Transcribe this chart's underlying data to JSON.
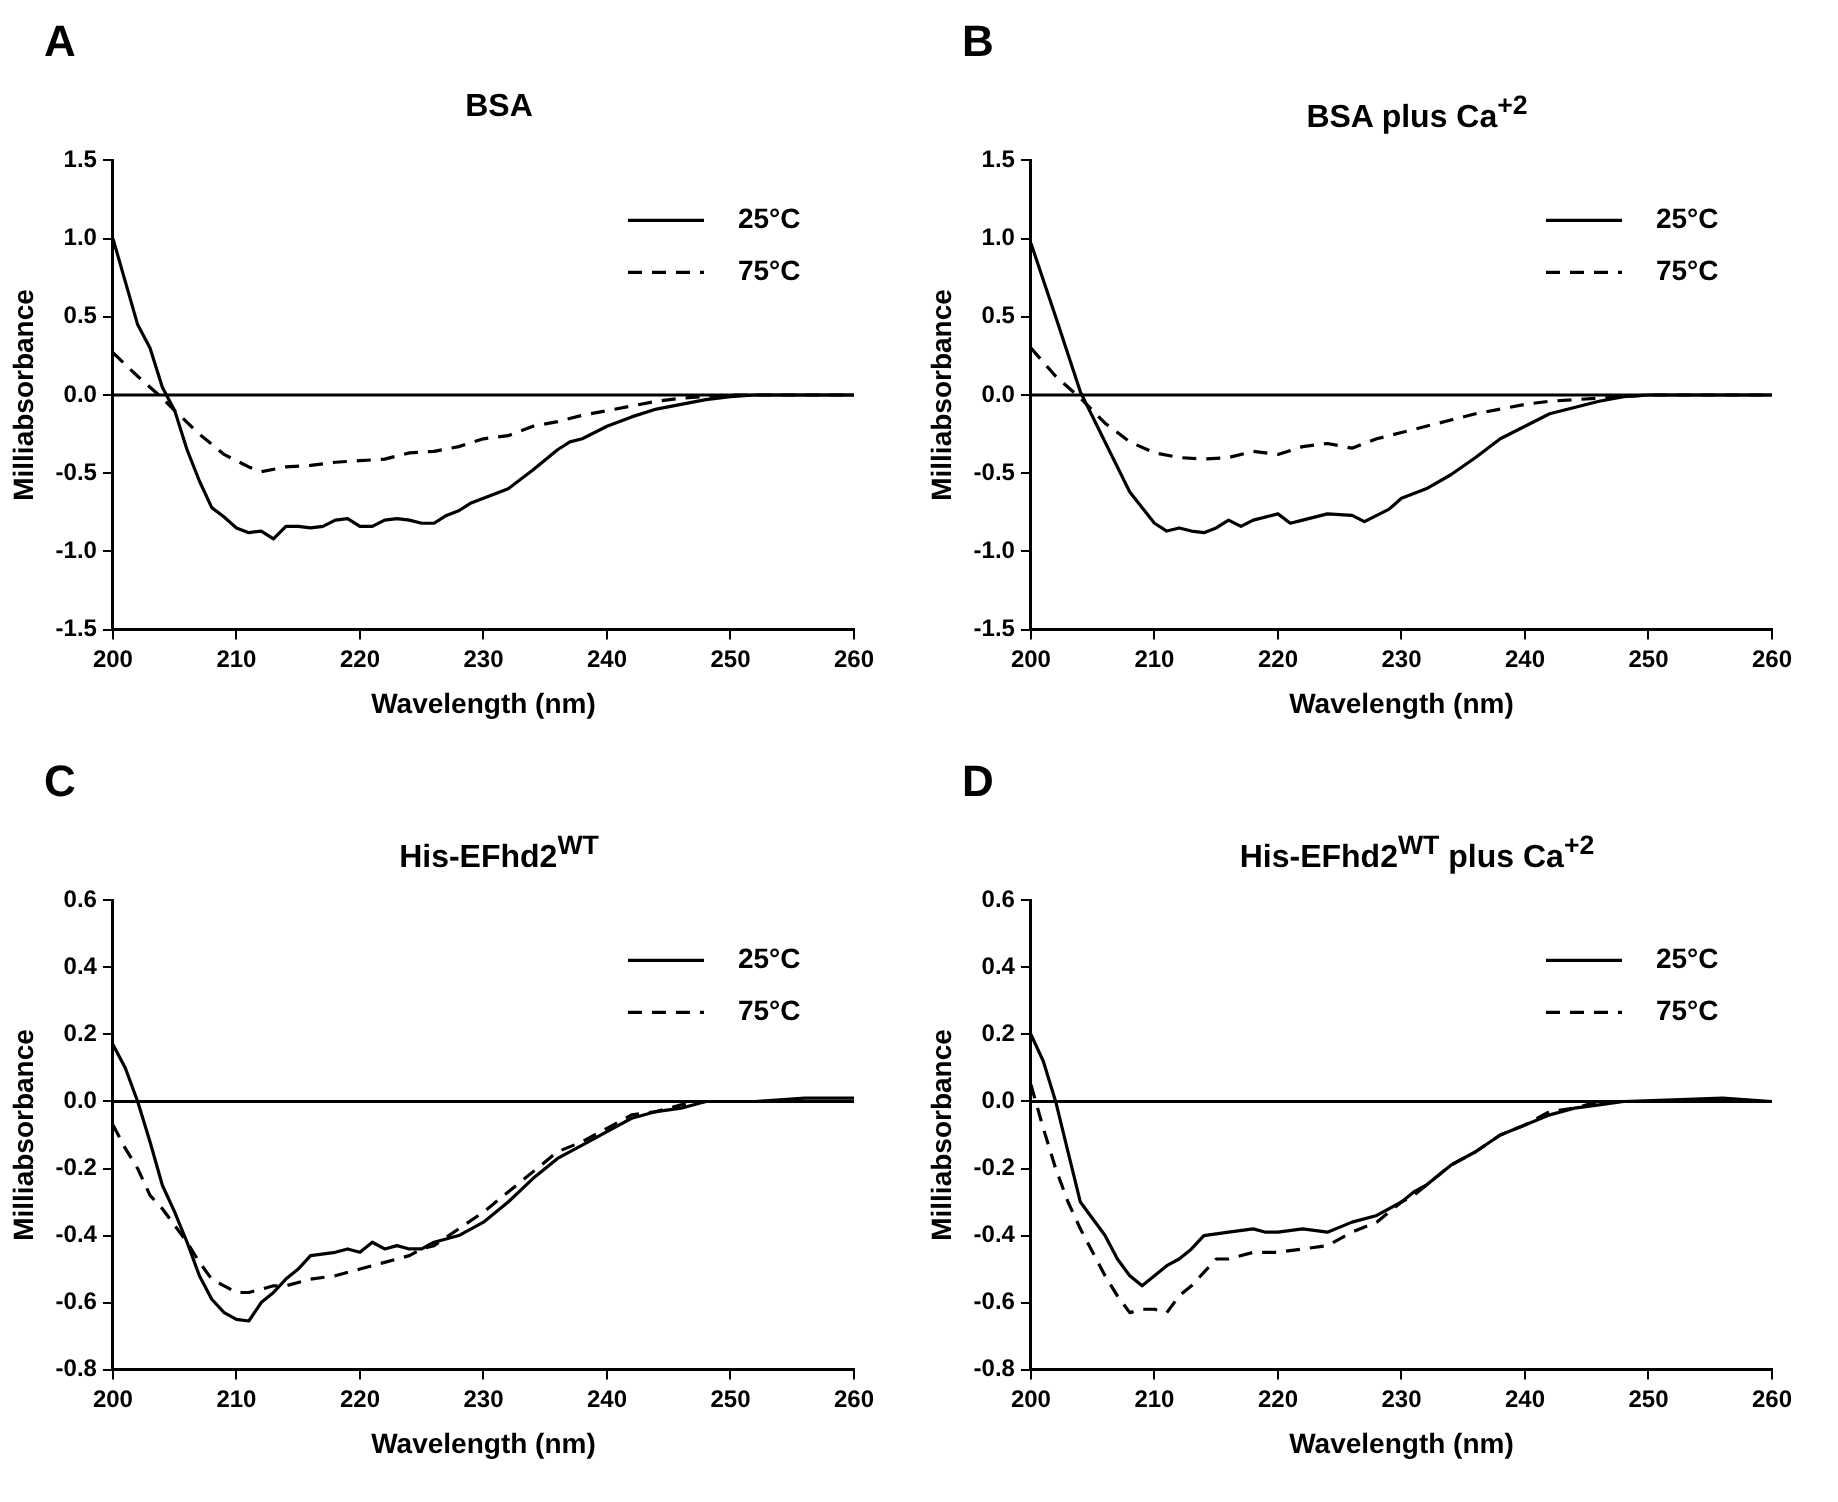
{
  "chart_data": [
    {
      "type": "line",
      "title": "BSA",
      "xlabel": "Wavelength (nm)",
      "ylabel": "Milliabsorbance",
      "annotations": [
        "A"
      ],
      "xlim": [
        200,
        260
      ],
      "xticks": [
        200,
        210,
        220,
        230,
        240,
        250,
        260
      ],
      "ylim": [
        -1.5,
        1.5
      ],
      "yticks": [
        {
          "value": -1.5,
          "label": "-1.5"
        },
        {
          "value": -1,
          "label": "-1.0"
        },
        {
          "value": -0.5,
          "label": "-0.5"
        },
        {
          "value": 0,
          "label": "0.0"
        },
        {
          "value": 0.5,
          "label": "0.5"
        },
        {
          "value": 1,
          "label": "1.0"
        },
        {
          "value": 1.5,
          "label": "1.5"
        }
      ],
      "grid": false,
      "legend": "top right",
      "marker": "none",
      "ref_lines": [
        {
          "axis": "y",
          "value": 0,
          "color": "#000000"
        }
      ],
      "series": [
        {
          "name": "25°C",
          "color": "#000000",
          "line_style": "solid",
          "x": [
            200,
            202,
            203,
            204,
            205,
            206,
            207,
            208,
            209,
            210,
            211,
            212,
            213,
            214,
            215,
            216,
            217,
            218,
            219,
            220,
            221,
            222,
            223,
            224,
            225,
            226,
            227,
            228,
            229,
            230,
            232,
            234,
            236,
            237,
            238,
            240,
            242,
            244,
            246,
            248,
            250,
            252,
            256,
            260
          ],
          "values": [
            1.0,
            0.45,
            0.3,
            0.05,
            -0.1,
            -0.35,
            -0.55,
            -0.72,
            -0.78,
            -0.85,
            -0.88,
            -0.87,
            -0.92,
            -0.84,
            -0.84,
            -0.85,
            -0.84,
            -0.8,
            -0.79,
            -0.84,
            -0.84,
            -0.8,
            -0.79,
            -0.8,
            -0.82,
            -0.82,
            -0.77,
            -0.74,
            -0.69,
            -0.66,
            -0.6,
            -0.48,
            -0.35,
            -0.3,
            -0.28,
            -0.2,
            -0.14,
            -0.09,
            -0.06,
            -0.03,
            -0.01,
            0,
            0,
            0
          ]
        },
        {
          "name": "75°C",
          "color": "#000000",
          "line_style": "dashed",
          "x": [
            200,
            202,
            204,
            205,
            207,
            209,
            211,
            212,
            214,
            216,
            218,
            220,
            222,
            224,
            226,
            228,
            230,
            232,
            234,
            236,
            238,
            240,
            242,
            244,
            246,
            248,
            250,
            260
          ],
          "values": [
            0.27,
            0.12,
            -0.02,
            -0.1,
            -0.25,
            -0.38,
            -0.46,
            -0.49,
            -0.46,
            -0.45,
            -0.43,
            -0.42,
            -0.41,
            -0.37,
            -0.36,
            -0.33,
            -0.28,
            -0.26,
            -0.2,
            -0.17,
            -0.13,
            -0.1,
            -0.07,
            -0.04,
            -0.02,
            -0.01,
            0,
            0
          ]
        }
      ]
    },
    {
      "type": "line",
      "title": "BSA plus Ca$^{+2}$",
      "xlabel": "Wavelength (nm)",
      "ylabel": "Milliabsorbance",
      "annotations": [
        "B"
      ],
      "xlim": [
        200,
        260
      ],
      "xticks": [
        200,
        210,
        220,
        230,
        240,
        250,
        260
      ],
      "ylim": [
        -1.5,
        1.5
      ],
      "yticks": [
        {
          "value": -1.5,
          "label": "-1.5"
        },
        {
          "value": -1,
          "label": "-1.0"
        },
        {
          "value": -0.5,
          "label": "-0.5"
        },
        {
          "value": 0,
          "label": "0.0"
        },
        {
          "value": 0.5,
          "label": "0.5"
        },
        {
          "value": 1,
          "label": "1.0"
        },
        {
          "value": 1.5,
          "label": "1.5"
        }
      ],
      "grid": false,
      "legend": "top right",
      "marker": "none",
      "ref_lines": [
        {
          "axis": "y",
          "value": 0,
          "color": "#000000"
        }
      ],
      "series": [
        {
          "name": "25°C",
          "color": "#000000",
          "line_style": "solid",
          "x": [
            200,
            202,
            204,
            206,
            208,
            210,
            211,
            212,
            213,
            214,
            215,
            216,
            217,
            218,
            220,
            221,
            222,
            224,
            226,
            227,
            228,
            229,
            230,
            232,
            234,
            236,
            238,
            240,
            242,
            244,
            246,
            248,
            250,
            260
          ],
          "values": [
            0.97,
            0.5,
            0.02,
            -0.3,
            -0.62,
            -0.82,
            -0.87,
            -0.85,
            -0.87,
            -0.88,
            -0.85,
            -0.8,
            -0.84,
            -0.8,
            -0.76,
            -0.82,
            -0.8,
            -0.76,
            -0.77,
            -0.81,
            -0.77,
            -0.73,
            -0.66,
            -0.6,
            -0.51,
            -0.4,
            -0.28,
            -0.2,
            -0.12,
            -0.08,
            -0.04,
            -0.01,
            0,
            0
          ]
        },
        {
          "name": "75°C",
          "color": "#000000",
          "line_style": "dashed",
          "x": [
            200,
            202,
            204,
            206,
            208,
            210,
            212,
            214,
            216,
            218,
            220,
            222,
            224,
            226,
            228,
            230,
            232,
            234,
            236,
            238,
            240,
            242,
            244,
            246,
            248,
            250,
            260
          ],
          "values": [
            0.3,
            0.12,
            -0.02,
            -0.18,
            -0.3,
            -0.37,
            -0.4,
            -0.41,
            -0.4,
            -0.36,
            -0.38,
            -0.33,
            -0.31,
            -0.34,
            -0.28,
            -0.24,
            -0.2,
            -0.16,
            -0.12,
            -0.09,
            -0.06,
            -0.04,
            -0.03,
            -0.02,
            -0.01,
            0,
            0
          ]
        }
      ]
    },
    {
      "type": "line",
      "title": "His-EFhd2$^{WT}$",
      "xlabel": "Wavelength (nm)",
      "ylabel": "Milliabsorbance",
      "annotations": [
        "C"
      ],
      "xlim": [
        200,
        260
      ],
      "xticks": [
        200,
        210,
        220,
        230,
        240,
        250,
        260
      ],
      "ylim": [
        -0.8,
        0.6
      ],
      "yticks": [
        {
          "value": -0.8,
          "label": "-0.8"
        },
        {
          "value": -0.6,
          "label": "-0.6"
        },
        {
          "value": -0.4,
          "label": "-0.4"
        },
        {
          "value": -0.2,
          "label": "-0.2"
        },
        {
          "value": 0,
          "label": "0.0"
        },
        {
          "value": 0.2,
          "label": "0.2"
        },
        {
          "value": 0.4,
          "label": "0.4"
        },
        {
          "value": 0.6,
          "label": "0.6"
        }
      ],
      "grid": false,
      "legend": "top right",
      "marker": "none",
      "ref_lines": [
        {
          "axis": "y",
          "value": 0,
          "color": "#000000"
        }
      ],
      "series": [
        {
          "name": "25°C",
          "color": "#000000",
          "line_style": "solid",
          "x": [
            200,
            201,
            202,
            203,
            204,
            205,
            206,
            207,
            208,
            209,
            210,
            211,
            212,
            213,
            214,
            215,
            216,
            218,
            219,
            220,
            221,
            222,
            223,
            224,
            225,
            226,
            228,
            230,
            232,
            234,
            236,
            238,
            240,
            242,
            244,
            246,
            248,
            252,
            256,
            260
          ],
          "values": [
            0.17,
            0.1,
            0.0,
            -0.12,
            -0.25,
            -0.33,
            -0.42,
            -0.52,
            -0.59,
            -0.63,
            -0.65,
            -0.655,
            -0.6,
            -0.57,
            -0.53,
            -0.5,
            -0.46,
            -0.45,
            -0.44,
            -0.45,
            -0.42,
            -0.44,
            -0.43,
            -0.44,
            -0.44,
            -0.42,
            -0.4,
            -0.36,
            -0.3,
            -0.23,
            -0.17,
            -0.13,
            -0.09,
            -0.05,
            -0.03,
            -0.02,
            0,
            0,
            0.01,
            0.01
          ]
        },
        {
          "name": "75°C",
          "color": "#000000",
          "line_style": "dashed",
          "x": [
            200,
            201,
            202,
            203,
            204,
            205,
            206,
            207,
            208,
            209,
            210,
            211,
            212,
            213,
            214,
            216,
            218,
            220,
            222,
            224,
            225,
            226,
            228,
            230,
            232,
            234,
            236,
            238,
            240,
            242,
            244,
            246,
            248,
            260
          ],
          "values": [
            -0.07,
            -0.14,
            -0.2,
            -0.28,
            -0.32,
            -0.37,
            -0.42,
            -0.48,
            -0.53,
            -0.55,
            -0.57,
            -0.57,
            -0.56,
            -0.55,
            -0.55,
            -0.53,
            -0.52,
            -0.5,
            -0.48,
            -0.46,
            -0.44,
            -0.43,
            -0.38,
            -0.33,
            -0.27,
            -0.21,
            -0.15,
            -0.12,
            -0.08,
            -0.04,
            -0.03,
            -0.01,
            0,
            0
          ]
        }
      ]
    },
    {
      "type": "line",
      "title": "His-EFhd2$^{WT}$ plus Ca$^{+2}$",
      "xlabel": "Wavelength (nm)",
      "ylabel": "Milliabsorbance",
      "annotations": [
        "D"
      ],
      "xlim": [
        200,
        260
      ],
      "xticks": [
        200,
        210,
        220,
        230,
        240,
        250,
        260
      ],
      "ylim": [
        -0.8,
        0.6
      ],
      "yticks": [
        {
          "value": -0.8,
          "label": "-0.8"
        },
        {
          "value": -0.6,
          "label": "-0.6"
        },
        {
          "value": -0.4,
          "label": "-0.4"
        },
        {
          "value": -0.2,
          "label": "-0.2"
        },
        {
          "value": 0,
          "label": "0.0"
        },
        {
          "value": 0.2,
          "label": "0.2"
        },
        {
          "value": 0.4,
          "label": "0.4"
        },
        {
          "value": 0.6,
          "label": "0.6"
        }
      ],
      "grid": false,
      "legend": "top right",
      "marker": "none",
      "ref_lines": [
        {
          "axis": "y",
          "value": 0,
          "color": "#000000"
        }
      ],
      "series": [
        {
          "name": "25°C",
          "color": "#000000",
          "line_style": "solid",
          "x": [
            200,
            201,
            202,
            203,
            204,
            205,
            206,
            207,
            208,
            209,
            210,
            211,
            212,
            213,
            214,
            216,
            218,
            219,
            220,
            222,
            224,
            226,
            228,
            230,
            231,
            232,
            234,
            236,
            238,
            240,
            242,
            244,
            246,
            248,
            256,
            260
          ],
          "values": [
            0.2,
            0.12,
            0.0,
            -0.15,
            -0.3,
            -0.35,
            -0.4,
            -0.47,
            -0.52,
            -0.55,
            -0.52,
            -0.49,
            -0.47,
            -0.44,
            -0.4,
            -0.39,
            -0.38,
            -0.39,
            -0.39,
            -0.38,
            -0.39,
            -0.36,
            -0.34,
            -0.3,
            -0.27,
            -0.25,
            -0.19,
            -0.15,
            -0.1,
            -0.07,
            -0.04,
            -0.02,
            -0.01,
            0,
            0.01,
            0
          ]
        },
        {
          "name": "75°C",
          "color": "#000000",
          "line_style": "dashed",
          "x": [
            200,
            201,
            202,
            203,
            204,
            205,
            206,
            207,
            208,
            209,
            210,
            211,
            212,
            213,
            214,
            215,
            216,
            218,
            220,
            222,
            224,
            226,
            228,
            230,
            231,
            232,
            234,
            236,
            238,
            240,
            242,
            244,
            246,
            260
          ],
          "values": [
            0.05,
            -0.08,
            -0.2,
            -0.3,
            -0.38,
            -0.45,
            -0.52,
            -0.58,
            -0.63,
            -0.62,
            -0.62,
            -0.63,
            -0.58,
            -0.55,
            -0.51,
            -0.47,
            -0.47,
            -0.45,
            -0.45,
            -0.44,
            -0.43,
            -0.39,
            -0.36,
            -0.3,
            -0.28,
            -0.25,
            -0.19,
            -0.15,
            -0.1,
            -0.07,
            -0.03,
            -0.02,
            0,
            0
          ]
        }
      ]
    }
  ]
}
